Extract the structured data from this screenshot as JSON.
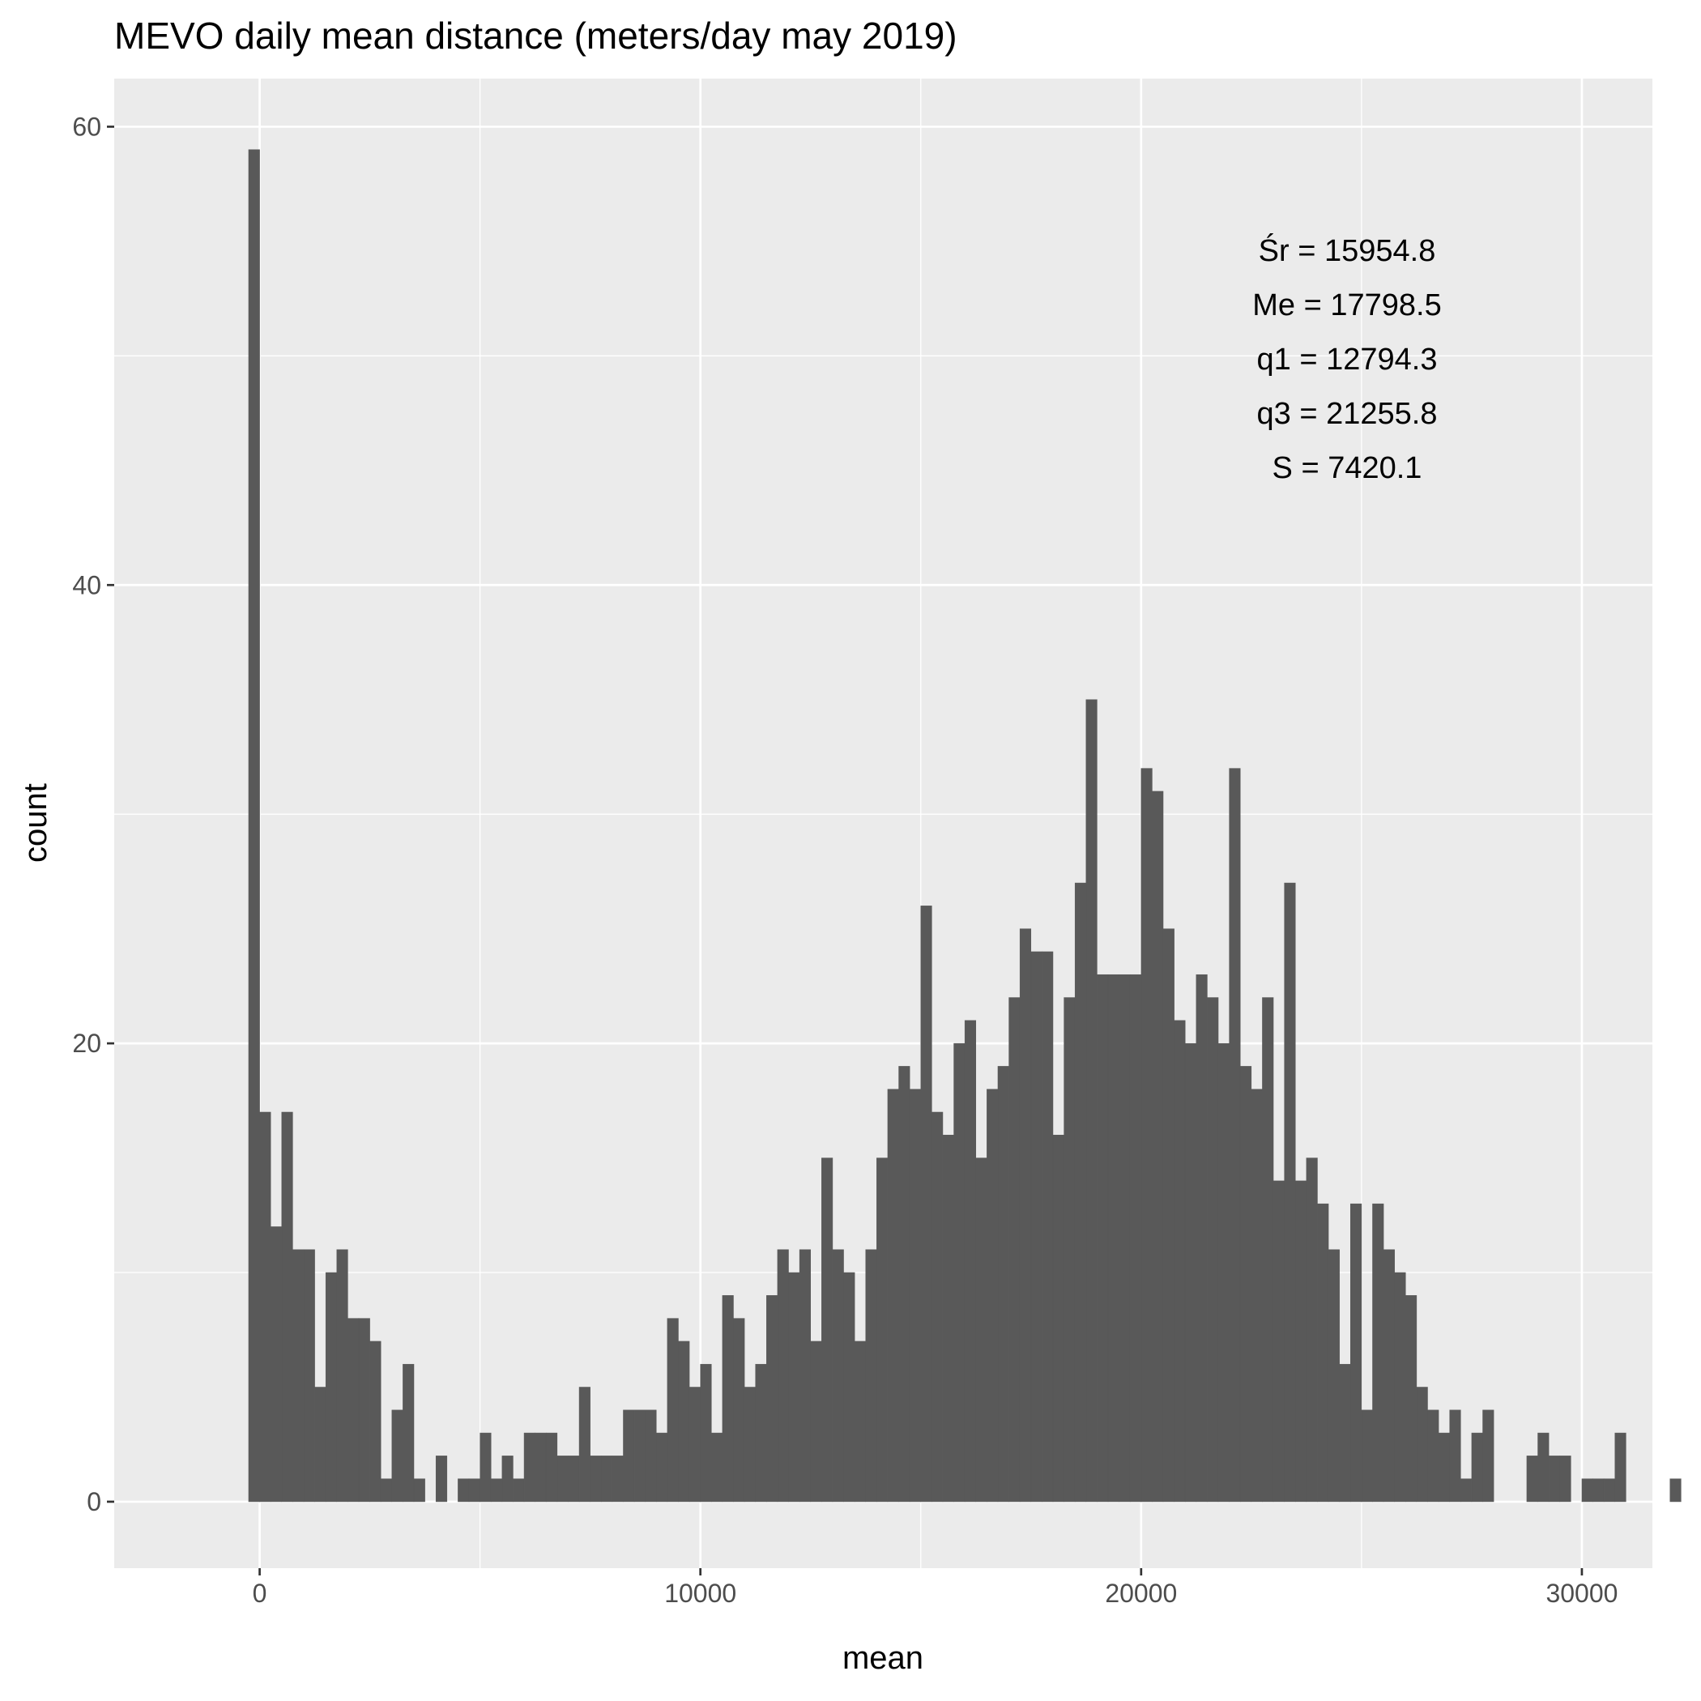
{
  "chart_data": {
    "type": "bar",
    "title": "MEVO daily mean distance (meters/day may 2019)",
    "xlabel": "mean",
    "ylabel": "count",
    "x_start": -250,
    "bin_width": 250,
    "values": [
      59,
      17,
      12,
      17,
      11,
      11,
      5,
      10,
      11,
      8,
      8,
      7,
      1,
      4,
      6,
      1,
      0,
      2,
      0,
      1,
      1,
      3,
      1,
      2,
      1,
      3,
      3,
      3,
      2,
      2,
      5,
      2,
      2,
      2,
      4,
      4,
      4,
      3,
      8,
      7,
      5,
      6,
      3,
      9,
      8,
      5,
      6,
      9,
      11,
      10,
      11,
      7,
      15,
      11,
      10,
      7,
      11,
      15,
      18,
      19,
      18,
      26,
      17,
      16,
      20,
      21,
      15,
      18,
      19,
      22,
      25,
      24,
      24,
      16,
      22,
      27,
      35,
      23,
      23,
      23,
      23,
      32,
      31,
      25,
      21,
      20,
      23,
      22,
      20,
      32,
      19,
      18,
      22,
      14,
      27,
      14,
      15,
      13,
      11,
      6,
      13,
      4,
      13,
      11,
      10,
      9,
      5,
      4,
      3,
      4,
      1,
      3,
      4,
      0,
      0,
      0,
      2,
      3,
      2,
      2,
      0,
      1,
      1,
      1,
      3,
      0,
      0,
      0,
      0,
      1
    ],
    "xlim": [
      -3300,
      31600
    ],
    "ylim": [
      -2.9,
      62.1
    ],
    "x_ticks": [
      0,
      10000,
      20000,
      30000
    ],
    "x_tick_labels": [
      "0",
      "10000",
      "20000",
      "30000"
    ],
    "y_ticks": [
      0,
      20,
      40,
      60
    ],
    "y_tick_labels": [
      "0",
      "20",
      "40",
      "60"
    ],
    "grid": true,
    "bar_color": "#595959",
    "panel_color": "#ebebeb",
    "grid_color": "#ffffff",
    "annotations": [
      "Śr = 15954.8",
      "Me = 17798.5",
      "q1 = 12794.3",
      "q3 = 21255.8",
      "S = 7420.1"
    ]
  }
}
